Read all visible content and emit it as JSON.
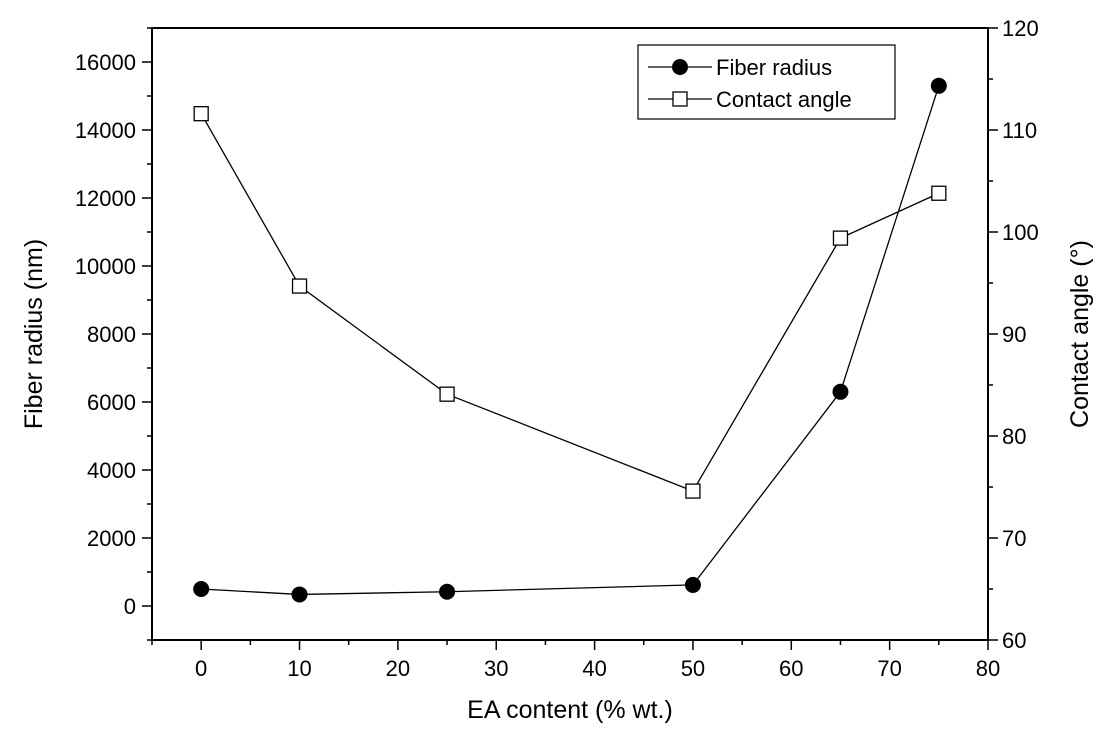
{
  "chart_data": {
    "type": "line",
    "xlabel": "EA content (% wt.)",
    "ylabel_left": "Fiber radius (nm)",
    "ylabel_right": "Contact angle (°)",
    "xlim": [
      -5,
      80
    ],
    "ylim_left": [
      -1000,
      17000
    ],
    "ylim_right": [
      60,
      120
    ],
    "xticks": [
      0,
      10,
      20,
      30,
      40,
      50,
      60,
      70,
      80
    ],
    "yticks_left": [
      0,
      2000,
      4000,
      6000,
      8000,
      10000,
      12000,
      14000,
      16000
    ],
    "yticks_right": [
      60,
      70,
      80,
      90,
      100,
      110,
      120
    ],
    "legend_position": "top-right",
    "series": [
      {
        "name": "Fiber radius",
        "axis": "left",
        "marker": "filled-circle",
        "x": [
          0,
          10,
          25,
          50,
          65,
          75
        ],
        "y": [
          500,
          340,
          420,
          620,
          6300,
          15300
        ]
      },
      {
        "name": "Contact angle",
        "axis": "right",
        "marker": "open-square",
        "x": [
          0,
          10,
          25,
          50,
          65,
          75
        ],
        "y": [
          111.6,
          94.7,
          84.1,
          74.6,
          99.4,
          103.8
        ]
      }
    ]
  }
}
